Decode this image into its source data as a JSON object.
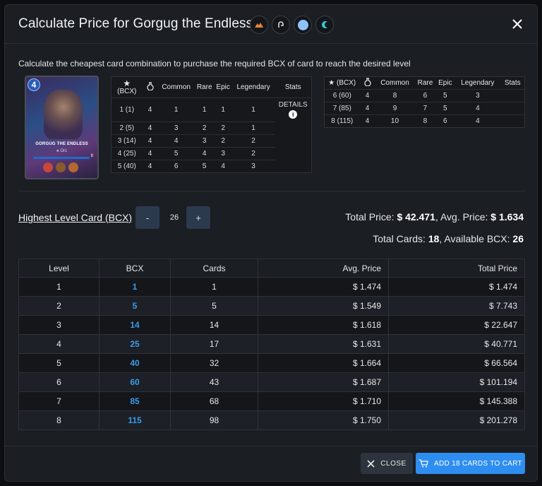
{
  "modal": {
    "title": "Calculate Price for Gorgug the Endless",
    "description": "Calculate the cheapest card combination to purchase the required BCX of card to reach the desired level",
    "element_icons": [
      "fire-element-icon",
      "neutral-element-icon",
      "water-element-icon",
      "water-ability-icon"
    ]
  },
  "card": {
    "name": "GORGUG THE ENDLESS",
    "mana": "4",
    "race": "Orc",
    "level_badge": "8"
  },
  "stats_table_left": {
    "headers": [
      "(BCX)",
      "Common",
      "Rare",
      "Epic",
      "Legendary",
      "Stats"
    ],
    "details_label": "DETAILS",
    "rows": [
      {
        "level": "1 (1)",
        "pot": "4",
        "common": "1",
        "rare": "1",
        "epic": "1",
        "legendary": "1"
      },
      {
        "level": "2 (5)",
        "pot": "4",
        "common": "3",
        "rare": "2",
        "epic": "2",
        "legendary": "1"
      },
      {
        "level": "3 (14)",
        "pot": "4",
        "common": "4",
        "rare": "3",
        "epic": "2",
        "legendary": "2"
      },
      {
        "level": "4 (25)",
        "pot": "4",
        "common": "5",
        "rare": "4",
        "epic": "3",
        "legendary": "2"
      },
      {
        "level": "5 (40)",
        "pot": "4",
        "common": "6",
        "rare": "5",
        "epic": "4",
        "legendary": "3"
      }
    ]
  },
  "stats_table_right": {
    "headers": [
      "(BCX)",
      "Common",
      "Rare",
      "Epic",
      "Legendary",
      "Stats"
    ],
    "rows": [
      {
        "level": "6 (60)",
        "pot": "4",
        "common": "8",
        "rare": "6",
        "epic": "5",
        "legendary": "3"
      },
      {
        "level": "7 (85)",
        "pot": "4",
        "common": "9",
        "rare": "7",
        "epic": "5",
        "legendary": "4"
      },
      {
        "level": "8 (115)",
        "pot": "4",
        "common": "10",
        "rare": "8",
        "epic": "6",
        "legendary": "4"
      }
    ]
  },
  "level_selector": {
    "label": "Highest Level Card (BCX)",
    "minus": "-",
    "value": "26",
    "plus": "+"
  },
  "totals": {
    "total_price_label": "Total Price:",
    "total_price": "$ 42.471",
    "avg_price_label": ", Avg. Price:",
    "avg_price": "$ 1.634",
    "total_cards_label": "Total Cards:",
    "total_cards": "18",
    "available_bcx_label": ", Available BCX:",
    "available_bcx": "26"
  },
  "price_table": {
    "headers": [
      "Level",
      "BCX",
      "Cards",
      "Avg. Price",
      "Total Price"
    ],
    "rows": [
      {
        "level": "1",
        "bcx": "1",
        "cards": "1",
        "avg": "$ 1.474",
        "total": "$ 1.474"
      },
      {
        "level": "2",
        "bcx": "5",
        "cards": "5",
        "avg": "$ 1.549",
        "total": "$ 7.743"
      },
      {
        "level": "3",
        "bcx": "14",
        "cards": "14",
        "avg": "$ 1.618",
        "total": "$ 22.647"
      },
      {
        "level": "4",
        "bcx": "25",
        "cards": "17",
        "avg": "$ 1.631",
        "total": "$ 40.771"
      },
      {
        "level": "5",
        "bcx": "40",
        "cards": "32",
        "avg": "$ 1.664",
        "total": "$ 66.564"
      },
      {
        "level": "6",
        "bcx": "60",
        "cards": "43",
        "avg": "$ 1.687",
        "total": "$ 101.194"
      },
      {
        "level": "7",
        "bcx": "85",
        "cards": "68",
        "avg": "$ 1.710",
        "total": "$ 145.388"
      },
      {
        "level": "8",
        "bcx": "115",
        "cards": "98",
        "avg": "$ 1.750",
        "total": "$ 201.278"
      }
    ]
  },
  "footer": {
    "close_label": "CLOSE",
    "cart_label": "ADD 18 CARDS TO CART"
  },
  "colors": {
    "accent": "#2e8ef0",
    "bcx_link": "#3b9be8",
    "background": "#1b1e23"
  }
}
